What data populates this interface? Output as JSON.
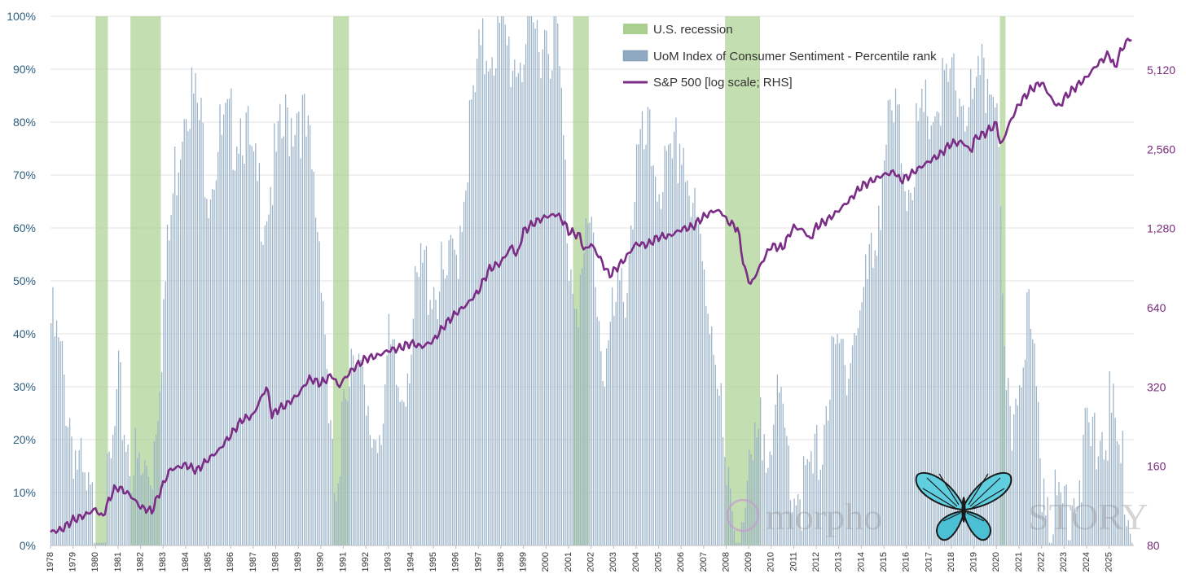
{
  "chart_data": {
    "type": "bar+line",
    "title": "",
    "legend": {
      "placement": "top-center",
      "entries": [
        {
          "label": "U.S. recession",
          "color": "#a9d08e"
        },
        {
          "label": "UoM Index of Consumer Sentiment  -  Percentile rank",
          "color": "#8ea9c1"
        },
        {
          "label": "S&P 500 [log scale; RHS]",
          "color": "#7b2c86"
        }
      ]
    },
    "left_axis": {
      "ylim": [
        0,
        100
      ],
      "ticks": [
        0,
        10,
        20,
        30,
        40,
        50,
        60,
        70,
        80,
        90,
        100
      ],
      "tick_labels": [
        "0%",
        "10%",
        "20%",
        "30%",
        "40%",
        "50%",
        "60%",
        "70%",
        "80%",
        "90%",
        "100%"
      ]
    },
    "right_axis": {
      "scale": "log",
      "ylim": [
        80,
        8192
      ],
      "ticks": [
        80,
        160,
        320,
        640,
        1280,
        2560,
        5120
      ],
      "tick_labels": [
        "80",
        "160",
        "320",
        "640",
        "1,280",
        "2,560",
        "5,120"
      ]
    },
    "x_axis": {
      "range": [
        1978.0,
        2026.1
      ],
      "year_labels": [
        "1978",
        "1979",
        "1980",
        "1981",
        "1982",
        "1983",
        "1984",
        "1985",
        "1986",
        "1987",
        "1988",
        "1989",
        "1990",
        "1991",
        "1992",
        "1993",
        "1994",
        "1995",
        "1996",
        "1997",
        "1998",
        "1999",
        "2000",
        "2001",
        "2002",
        "2003",
        "2004",
        "2005",
        "2006",
        "2007",
        "2008",
        "2009",
        "2010",
        "2011",
        "2012",
        "2013",
        "2014",
        "2015",
        "2016",
        "2017",
        "2018",
        "2019",
        "2020",
        "2021",
        "2022",
        "2023",
        "2024",
        "2025"
      ]
    },
    "recessions": [
      {
        "start": 1980.0,
        "end": 1980.55
      },
      {
        "start": 1981.55,
        "end": 1982.9
      },
      {
        "start": 1990.55,
        "end": 1991.25
      },
      {
        "start": 2001.2,
        "end": 2001.9
      },
      {
        "start": 2007.95,
        "end": 2009.5
      },
      {
        "start": 2020.15,
        "end": 2020.4
      }
    ],
    "sentiment_percentile": {
      "x": [
        1978.0,
        1978.5,
        1979.0,
        1979.5,
        1980.0,
        1980.3,
        1980.7,
        1981.0,
        1981.5,
        1982.0,
        1982.5,
        1983.0,
        1983.5,
        1984.0,
        1984.5,
        1985.0,
        1985.5,
        1986.0,
        1986.5,
        1987.0,
        1987.5,
        1988.0,
        1988.5,
        1989.0,
        1989.5,
        1990.0,
        1990.5,
        1990.8,
        1991.0,
        1991.5,
        1992.0,
        1992.5,
        1993.0,
        1993.5,
        1994.0,
        1994.5,
        1995.0,
        1995.5,
        1996.0,
        1996.5,
        1997.0,
        1997.5,
        1998.0,
        1998.5,
        1999.0,
        1999.5,
        2000.0,
        2000.5,
        2001.0,
        2001.5,
        2002.0,
        2002.5,
        2003.0,
        2003.5,
        2004.0,
        2004.5,
        2005.0,
        2005.5,
        2006.0,
        2006.5,
        2007.0,
        2007.5,
        2008.0,
        2008.5,
        2009.0,
        2009.5,
        2010.0,
        2010.5,
        2011.0,
        2011.5,
        2012.0,
        2012.5,
        2013.0,
        2013.5,
        2014.0,
        2014.5,
        2015.0,
        2015.5,
        2016.0,
        2016.5,
        2017.0,
        2017.5,
        2018.0,
        2018.5,
        2019.0,
        2019.5,
        2020.0,
        2020.3,
        2020.6,
        2021.0,
        2021.3,
        2021.7,
        2022.0,
        2022.5,
        2023.0,
        2023.5,
        2024.0,
        2024.5,
        2025.0,
        2025.5,
        2026.0
      ],
      "values": [
        42,
        33,
        20,
        8,
        5,
        2,
        15,
        28,
        18,
        12,
        16,
        45,
        70,
        88,
        82,
        70,
        76,
        78,
        82,
        68,
        65,
        72,
        80,
        84,
        72,
        56,
        12,
        4,
        30,
        42,
        20,
        22,
        35,
        28,
        40,
        52,
        50,
        48,
        55,
        75,
        90,
        96,
        95,
        92,
        94,
        96,
        98,
        95,
        55,
        48,
        60,
        35,
        42,
        50,
        72,
        75,
        70,
        68,
        78,
        62,
        50,
        40,
        8,
        3,
        10,
        20,
        25,
        22,
        12,
        10,
        15,
        30,
        35,
        38,
        45,
        55,
        75,
        80,
        70,
        76,
        82,
        84,
        86,
        85,
        82,
        88,
        90,
        30,
        20,
        35,
        45,
        30,
        15,
        5,
        8,
        12,
        18,
        20,
        25,
        15,
        5
      ]
    },
    "sp500_rhs": {
      "x": [
        1978.0,
        1978.5,
        1979.0,
        1979.5,
        1980.0,
        1980.3,
        1980.8,
        1981.0,
        1981.5,
        1982.0,
        1982.5,
        1982.9,
        1983.3,
        1984.0,
        1984.5,
        1985.0,
        1985.5,
        1986.0,
        1986.5,
        1987.0,
        1987.6,
        1987.85,
        1988.0,
        1988.5,
        1989.0,
        1989.5,
        1990.0,
        1990.5,
        1990.8,
        1991.0,
        1991.5,
        1992.0,
        1992.5,
        1993.0,
        1993.5,
        1994.0,
        1994.5,
        1995.0,
        1995.5,
        1996.0,
        1996.5,
        1997.0,
        1997.5,
        1998.0,
        1998.5,
        1998.7,
        1999.0,
        1999.5,
        2000.0,
        2000.5,
        2000.8,
        2001.0,
        2001.5,
        2001.7,
        2002.0,
        2002.5,
        2002.8,
        2003.0,
        2003.5,
        2004.0,
        2004.5,
        2005.0,
        2005.5,
        2006.0,
        2006.5,
        2007.0,
        2007.5,
        2007.8,
        2008.0,
        2008.5,
        2008.8,
        2009.1,
        2009.5,
        2010.0,
        2010.5,
        2011.0,
        2011.5,
        2011.7,
        2012.0,
        2012.5,
        2013.0,
        2013.5,
        2014.0,
        2014.5,
        2015.0,
        2015.5,
        2015.7,
        2016.0,
        2016.5,
        2017.0,
        2017.5,
        2018.0,
        2018.5,
        2018.9,
        2019.0,
        2019.5,
        2020.0,
        2020.2,
        2020.5,
        2021.0,
        2021.5,
        2022.0,
        2022.5,
        2022.8,
        2023.0,
        2023.5,
        2024.0,
        2024.5,
        2025.0,
        2025.25,
        2025.5,
        2025.85
      ],
      "values": [
        90,
        92,
        100,
        104,
        110,
        102,
        130,
        133,
        125,
        112,
        108,
        130,
        155,
        162,
        154,
        170,
        185,
        210,
        240,
        250,
        320,
        245,
        260,
        275,
        300,
        345,
        330,
        355,
        320,
        340,
        380,
        410,
        420,
        440,
        450,
        470,
        455,
        480,
        550,
        610,
        660,
        740,
        900,
        950,
        1100,
        990,
        1250,
        1350,
        1420,
        1450,
        1350,
        1250,
        1200,
        1050,
        1120,
        950,
        850,
        880,
        980,
        1120,
        1110,
        1190,
        1200,
        1270,
        1300,
        1420,
        1500,
        1480,
        1380,
        1280,
        900,
        780,
        920,
        1100,
        1080,
        1300,
        1250,
        1150,
        1300,
        1380,
        1500,
        1650,
        1850,
        1950,
        2050,
        2100,
        1950,
        2000,
        2150,
        2300,
        2450,
        2700,
        2720,
        2500,
        2800,
        2950,
        3200,
        2600,
        3100,
        3800,
        4300,
        4600,
        3900,
        3700,
        4000,
        4400,
        4800,
        5400,
        5900,
        5200,
        6000,
        6700
      ]
    }
  },
  "watermark": {
    "logo_text": "morpho",
    "suffix_text": "STORY"
  }
}
